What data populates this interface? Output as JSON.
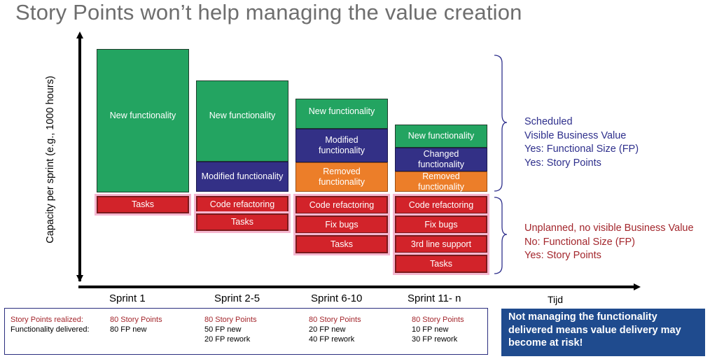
{
  "title": "Story Points won’t help managing the value creation",
  "y_axis_label": "Capacity per sprint (e.g., 1000 hours)",
  "x_axis_label": "Tijd",
  "sprints": [
    {
      "label": "Sprint 1",
      "scheduled": [
        "New functionality"
      ],
      "unplanned": [
        "Tasks"
      ],
      "story_points": "80 Story Points",
      "functionality": [
        "80 FP new"
      ]
    },
    {
      "label": "Sprint 2-5",
      "scheduled": [
        "New functionality",
        "Modified functionality"
      ],
      "unplanned": [
        "Code refactoring",
        "Tasks"
      ],
      "story_points": "80 Story Points",
      "functionality": [
        "50 FP new",
        "20 FP rework"
      ]
    },
    {
      "label": "Sprint 6-10",
      "scheduled": [
        "New functionality",
        "Modified functionality",
        "Removed functionality"
      ],
      "unplanned": [
        "Code refactoring",
        "Fix bugs",
        "Tasks"
      ],
      "story_points": "80 Story Points",
      "functionality": [
        "20 FP new",
        "40 FP rework"
      ]
    },
    {
      "label": "Sprint 11- n",
      "scheduled": [
        "New functionality",
        "Changed functionality",
        "Removed functionality"
      ],
      "unplanned": [
        "Code refactoring",
        "Fix bugs",
        "3rd line support",
        "Tasks"
      ],
      "story_points": "80 Story Points",
      "functionality": [
        "10 FP new",
        "30 FP rework"
      ]
    }
  ],
  "legend": {
    "scheduled": [
      "Scheduled",
      "Visible Business Value",
      "Yes: Functional Size (FP)",
      "Yes: Story Points"
    ],
    "unplanned": [
      "Unplanned, no visible Business Value",
      "No: Functional Size (FP)",
      "Yes: Story Points"
    ]
  },
  "summary": {
    "sp_label": "Story Points realized:",
    "fd_label": "Functionality delivered:"
  },
  "callout": "Not managing the functionality delivered means value delivery may become at risk!",
  "colors": {
    "new": "#23a461",
    "modified": "#333086",
    "removed": "#ec7e29",
    "unplanned": "#d2232a",
    "scheduled_text": "#2e2f8c",
    "unplanned_text": "#a3262c",
    "callout_bg": "#1f4b8e"
  }
}
